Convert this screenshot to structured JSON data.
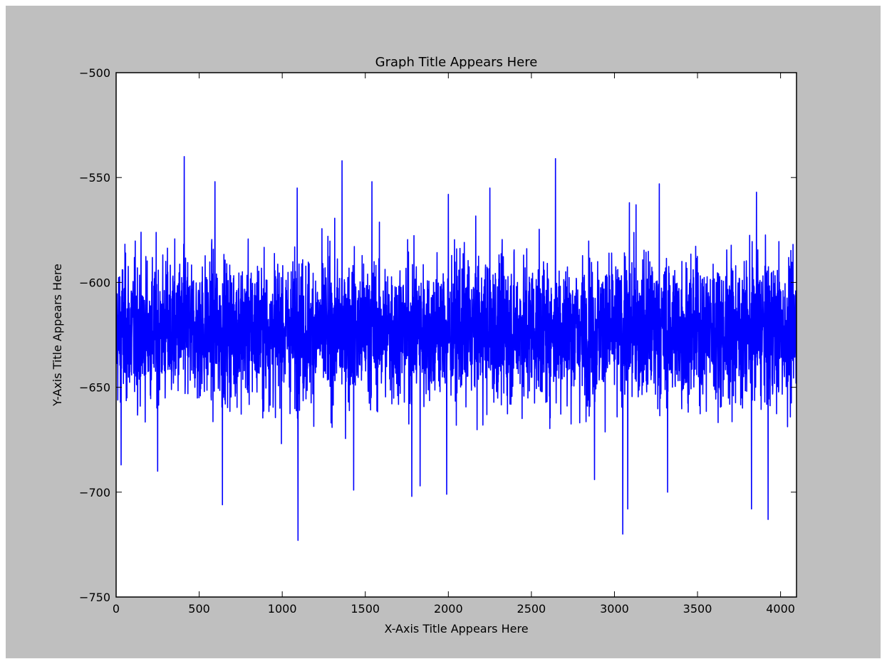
{
  "chart_data": {
    "type": "line",
    "title": "Graph Title Appears Here",
    "xlabel": "X-Axis Title Appears Here",
    "ylabel": "Y-Axis Title Appears Here",
    "xlim": [
      0,
      4096
    ],
    "ylim": [
      -750,
      -500
    ],
    "xticks": [
      0,
      500,
      1000,
      1500,
      2000,
      2500,
      3000,
      3500,
      4000
    ],
    "yticks": [
      -750,
      -700,
      -650,
      -600,
      -550,
      -500
    ],
    "grid": false,
    "legend": "none",
    "series": [
      {
        "color": "#0000ff",
        "note_on_values": "dense noise signal, 4096 samples; notable extremes listed as x,y pairs",
        "peaks": [
          [
            410,
            -540
          ],
          [
            595,
            -552
          ],
          [
            1090,
            -555
          ],
          [
            1360,
            -542
          ],
          [
            1540,
            -552
          ],
          [
            2250,
            -555
          ],
          [
            2645,
            -541
          ],
          [
            3270,
            -553
          ],
          [
            3855,
            -557
          ],
          [
            2000,
            -558
          ],
          [
            3090,
            -562
          ],
          [
            3130,
            -563
          ]
        ],
        "troughs": [
          [
            30,
            -687
          ],
          [
            250,
            -690
          ],
          [
            640,
            -706
          ],
          [
            1095,
            -723
          ],
          [
            1430,
            -699
          ],
          [
            1780,
            -702
          ],
          [
            1830,
            -697
          ],
          [
            1990,
            -701
          ],
          [
            2880,
            -694
          ],
          [
            3050,
            -720
          ],
          [
            3080,
            -708
          ],
          [
            3320,
            -700
          ],
          [
            3825,
            -708
          ],
          [
            3925,
            -713
          ]
        ]
      }
    ]
  },
  "colors": {
    "figure_background": "#bfbfbf",
    "axes_background": "#ffffff",
    "line": "#0000ff"
  }
}
